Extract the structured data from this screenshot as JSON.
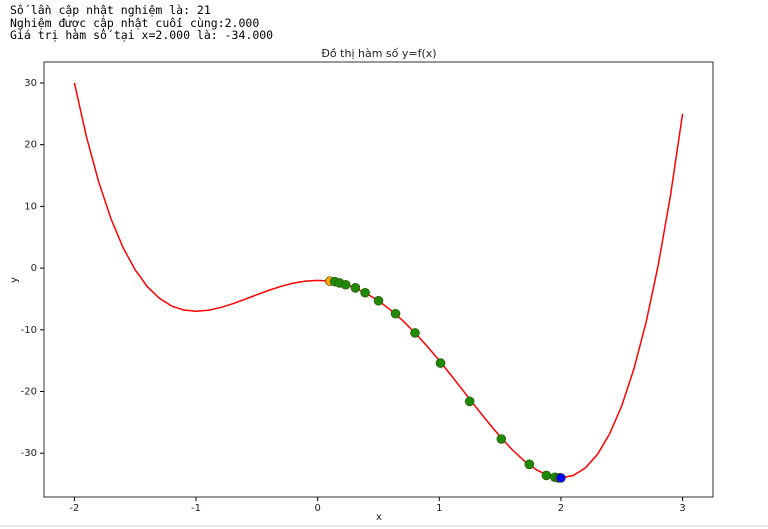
{
  "output_lines": [
    "Số lần cập nhật nghiệm là: 21",
    "Nghiệm được cập nhật cuối cùng:2.000",
    "Giá trị hàm số tại x=2.000 là: -34.000"
  ],
  "chart_data": {
    "type": "line",
    "title": "Đồ thị hàm số y=f(x)",
    "x_label": "x",
    "y_label": "y",
    "xlim": [
      -2.25,
      3.25
    ],
    "ylim": [
      -37.1,
      33.4
    ],
    "xticks": [
      -2,
      -1,
      0,
      1,
      2,
      3
    ],
    "yticks": [
      -30,
      -20,
      -10,
      0,
      10,
      20,
      30
    ],
    "series": [
      {
        "type": "line",
        "color": "#ff0000",
        "x": [
          -2,
          -1.9,
          -1.8,
          -1.7,
          -1.6,
          -1.5,
          -1.4,
          -1.3,
          -1.2,
          -1.1,
          -1,
          -0.9,
          -0.8,
          -0.7,
          -0.6,
          -0.5,
          -0.4,
          -0.3,
          -0.2,
          -0.1,
          0,
          0.1,
          0.2,
          0.3,
          0.4,
          0.5,
          0.6,
          0.7,
          0.8,
          0.9,
          1,
          1.1,
          1.2,
          1.3,
          1.4,
          1.5,
          1.6,
          1.7,
          1.8,
          1.9,
          2,
          2.1,
          2.2,
          2.3,
          2.4,
          2.5,
          2.6,
          2.7,
          2.8,
          2.9,
          3
        ],
        "values": [
          30,
          21.21,
          13.94,
          8.03,
          3.32,
          -0.31,
          -3.02,
          -4.92,
          -6.15,
          -6.8,
          -7,
          -6.84,
          -6.4,
          -5.79,
          -5.07,
          -4.31,
          -3.59,
          -2.95,
          -2.44,
          -2.12,
          -2,
          -2.12,
          -2.51,
          -3.16,
          -4.1,
          -5.31,
          -6.8,
          -8.53,
          -10.5,
          -12.67,
          -15,
          -17.45,
          -19.97,
          -22.5,
          -24.97,
          -27.31,
          -29.44,
          -31.28,
          -32.72,
          -33.66,
          -34,
          -33.62,
          -32.4,
          -30.2,
          -26.88,
          -22.31,
          -16.33,
          -8.78,
          0.51,
          11.71,
          25
        ]
      },
      {
        "type": "scatter",
        "color": "#ffa500",
        "x": [
          0.1
        ],
        "values": [
          -2.12
        ]
      },
      {
        "type": "scatter",
        "color": "#1f8a00",
        "x": [
          0.14,
          0.18,
          0.23,
          0.31,
          0.39,
          0.5,
          0.64,
          0.8,
          1.01,
          1.25,
          1.51,
          1.74,
          1.88,
          1.95,
          1.98,
          1.99
        ],
        "values": [
          -2.2,
          -2.4,
          -2.7,
          -3.2,
          -4,
          -5.3,
          -7.4,
          -10.5,
          -15.4,
          -21.6,
          -27.7,
          -31.8,
          -33.6,
          -33.9,
          -34,
          -34
        ]
      },
      {
        "type": "scatter",
        "color": "#0000ff",
        "x": [
          2
        ],
        "values": [
          -34
        ]
      }
    ]
  }
}
